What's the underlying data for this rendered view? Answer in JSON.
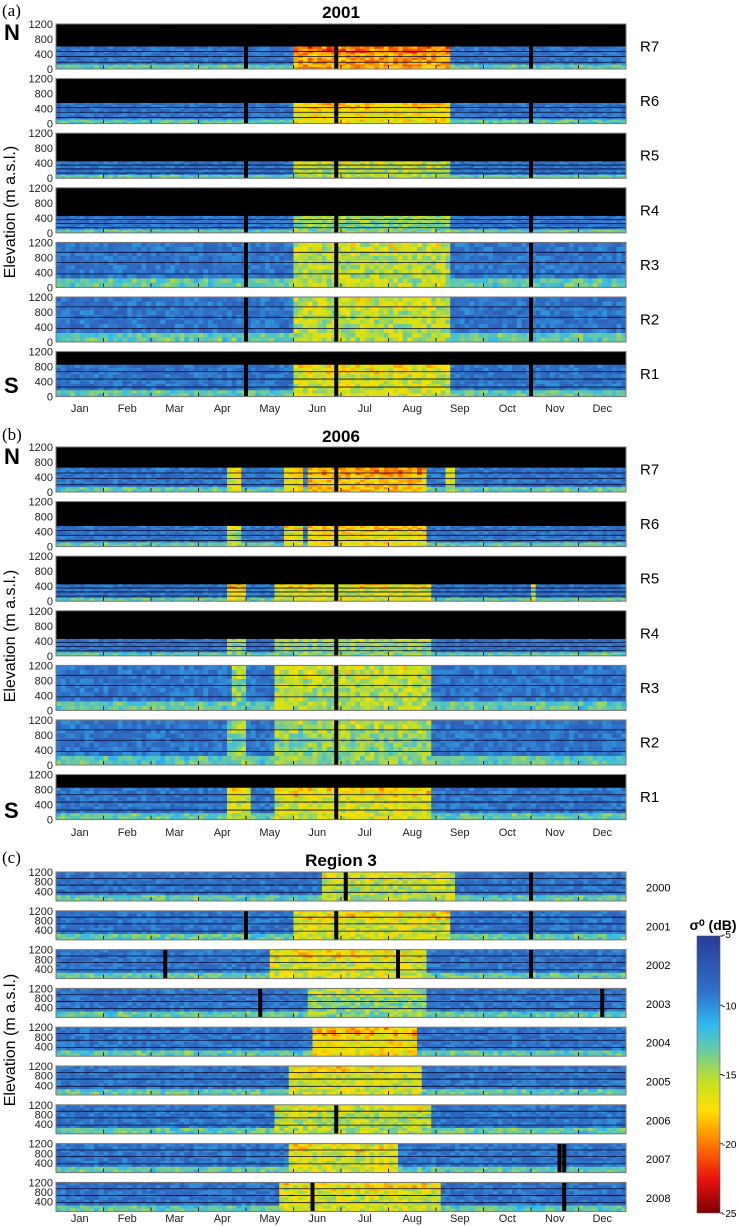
{
  "chart_data": [
    {
      "type": "heatmap",
      "panel_label": "(a)",
      "title": "2001",
      "xlabel": "",
      "ylabel": "Elevation (m a.s.l.)",
      "x_tick_labels": [
        "Jan",
        "Feb",
        "Mar",
        "Apr",
        "May",
        "Jun",
        "Jul",
        "Aug",
        "Sep",
        "Oct",
        "Nov",
        "Dec"
      ],
      "y_tick_labels": [
        "1200",
        "800",
        "400",
        "0"
      ],
      "ylim": [
        0,
        1200
      ],
      "side_labels": {
        "top": "N",
        "bottom": "S"
      },
      "rows": [
        {
          "name": "R7",
          "max_elev": 600,
          "gaps_month": [
            4.0,
            5.9,
            10.0
          ],
          "melt_periods": [
            [
              5.0,
              8.3,
              -19
            ]
          ]
        },
        {
          "name": "R6",
          "max_elev": 550,
          "gaps_month": [
            4.0,
            5.9,
            10.0
          ],
          "melt_periods": [
            [
              5.0,
              8.3,
              -17
            ]
          ]
        },
        {
          "name": "R5",
          "max_elev": 450,
          "gaps_month": [
            4.0,
            5.9,
            10.0
          ],
          "melt_periods": [
            [
              5.0,
              8.3,
              -15
            ]
          ]
        },
        {
          "name": "R4",
          "max_elev": 450,
          "gaps_month": [
            4.0,
            5.9,
            10.0
          ],
          "melt_periods": [
            [
              5.0,
              8.3,
              -14
            ]
          ]
        },
        {
          "name": "R3",
          "max_elev": 1200,
          "gaps_month": [
            4.0,
            5.9,
            10.0
          ],
          "melt_periods": [
            [
              5.0,
              8.3,
              -15
            ]
          ]
        },
        {
          "name": "R2",
          "max_elev": 1200,
          "gaps_month": [
            4.0,
            5.9,
            10.0
          ],
          "melt_periods": [
            [
              5.0,
              8.3,
              -15
            ]
          ]
        },
        {
          "name": "R1",
          "max_elev": 850,
          "gaps_month": [
            4.0,
            5.9,
            10.0
          ],
          "melt_periods": [
            [
              5.0,
              8.3,
              -16
            ]
          ]
        }
      ]
    },
    {
      "type": "heatmap",
      "panel_label": "(b)",
      "title": "2006",
      "xlabel": "",
      "ylabel": "Elevation (m a.s.l.)",
      "x_tick_labels": [
        "Jan",
        "Feb",
        "Mar",
        "Apr",
        "May",
        "Jun",
        "Jul",
        "Aug",
        "Sep",
        "Oct",
        "Nov",
        "Dec"
      ],
      "y_tick_labels": [
        "1200",
        "800",
        "400",
        "0"
      ],
      "ylim": [
        0,
        1200
      ],
      "side_labels": {
        "top": "N",
        "bottom": "S"
      },
      "rows": [
        {
          "name": "R7",
          "max_elev": 650,
          "gaps_month": [
            5.9
          ],
          "melt_periods": [
            [
              3.6,
              3.9,
              -16
            ],
            [
              4.8,
              5.2,
              -17
            ],
            [
              5.3,
              7.8,
              -18
            ],
            [
              8.2,
              8.4,
              -15
            ]
          ]
        },
        {
          "name": "R6",
          "max_elev": 550,
          "gaps_month": [
            5.9
          ],
          "melt_periods": [
            [
              3.6,
              3.9,
              -15
            ],
            [
              4.8,
              5.2,
              -16
            ],
            [
              5.3,
              7.8,
              -17
            ]
          ]
        },
        {
          "name": "R5",
          "max_elev": 450,
          "gaps_month": [
            5.9
          ],
          "melt_periods": [
            [
              3.6,
              4.0,
              -17
            ],
            [
              4.6,
              7.9,
              -16
            ],
            [
              10.0,
              10.1,
              -15
            ]
          ]
        },
        {
          "name": "R4",
          "max_elev": 450,
          "gaps_month": [
            5.9
          ],
          "melt_periods": [
            [
              3.6,
              4.0,
              -14
            ],
            [
              4.6,
              7.9,
              -14
            ]
          ]
        },
        {
          "name": "R3",
          "max_elev": 1200,
          "gaps_month": [
            5.9
          ],
          "melt_periods": [
            [
              3.7,
              4.0,
              -14
            ],
            [
              4.6,
              7.9,
              -15
            ]
          ]
        },
        {
          "name": "R2",
          "max_elev": 1200,
          "gaps_month": [
            5.9
          ],
          "melt_periods": [
            [
              3.6,
              4.0,
              -14
            ],
            [
              4.6,
              7.9,
              -14
            ]
          ]
        },
        {
          "name": "R1",
          "max_elev": 850,
          "gaps_month": [
            5.9
          ],
          "melt_periods": [
            [
              3.6,
              4.1,
              -16
            ],
            [
              4.6,
              7.9,
              -16
            ]
          ]
        }
      ]
    },
    {
      "type": "heatmap",
      "panel_label": "(c)",
      "title": "Region 3",
      "xlabel": "",
      "ylabel": "Elevation (m a.s.l.)",
      "x_tick_labels": [
        "Jan",
        "Feb",
        "Mar",
        "Apr",
        "May",
        "Jun",
        "Jul",
        "Aug",
        "Sep",
        "Oct",
        "Nov",
        "Dec"
      ],
      "y_tick_labels": [
        "1200",
        "800",
        "400"
      ],
      "ylim": [
        0,
        1200
      ],
      "rows": [
        {
          "name": "2000",
          "gaps_month": [
            6.1,
            10.0
          ],
          "melt_periods": [
            [
              5.6,
              8.4,
              -15
            ]
          ]
        },
        {
          "name": "2001",
          "gaps_month": [
            4.0,
            5.9,
            10.0
          ],
          "melt_periods": [
            [
              5.0,
              8.3,
              -16
            ]
          ]
        },
        {
          "name": "2002",
          "gaps_month": [
            2.3,
            7.2,
            10.0
          ],
          "melt_periods": [
            [
              4.5,
              7.8,
              -16
            ]
          ]
        },
        {
          "name": "2003",
          "gaps_month": [
            4.3,
            11.5
          ],
          "melt_periods": [
            [
              5.3,
              7.8,
              -14
            ]
          ]
        },
        {
          "name": "2004",
          "gaps_month": [],
          "melt_periods": [
            [
              5.4,
              7.6,
              -17
            ]
          ]
        },
        {
          "name": "2005",
          "gaps_month": [],
          "melt_periods": [
            [
              4.9,
              7.7,
              -16
            ]
          ]
        },
        {
          "name": "2006",
          "gaps_month": [
            5.9
          ],
          "melt_periods": [
            [
              4.6,
              7.9,
              -15
            ]
          ]
        },
        {
          "name": "2007",
          "gaps_month": [
            10.6,
            10.7
          ],
          "melt_periods": [
            [
              4.9,
              7.2,
              -16
            ]
          ]
        },
        {
          "name": "2008",
          "gaps_month": [
            5.4,
            10.7
          ],
          "melt_periods": [
            [
              4.7,
              8.1,
              -16
            ]
          ]
        }
      ]
    }
  ],
  "colorbar": {
    "title": "σ⁰ (dB)",
    "ticks": [
      "-5",
      "-10",
      "-15",
      "-20",
      "-25"
    ],
    "range": [
      -25,
      -5
    ],
    "colors": [
      "#7f0000",
      "#e81010",
      "#ff8000",
      "#ffe000",
      "#c8e020",
      "#60c8b0",
      "#30b8f0",
      "#3070c8",
      "#283c98"
    ]
  }
}
